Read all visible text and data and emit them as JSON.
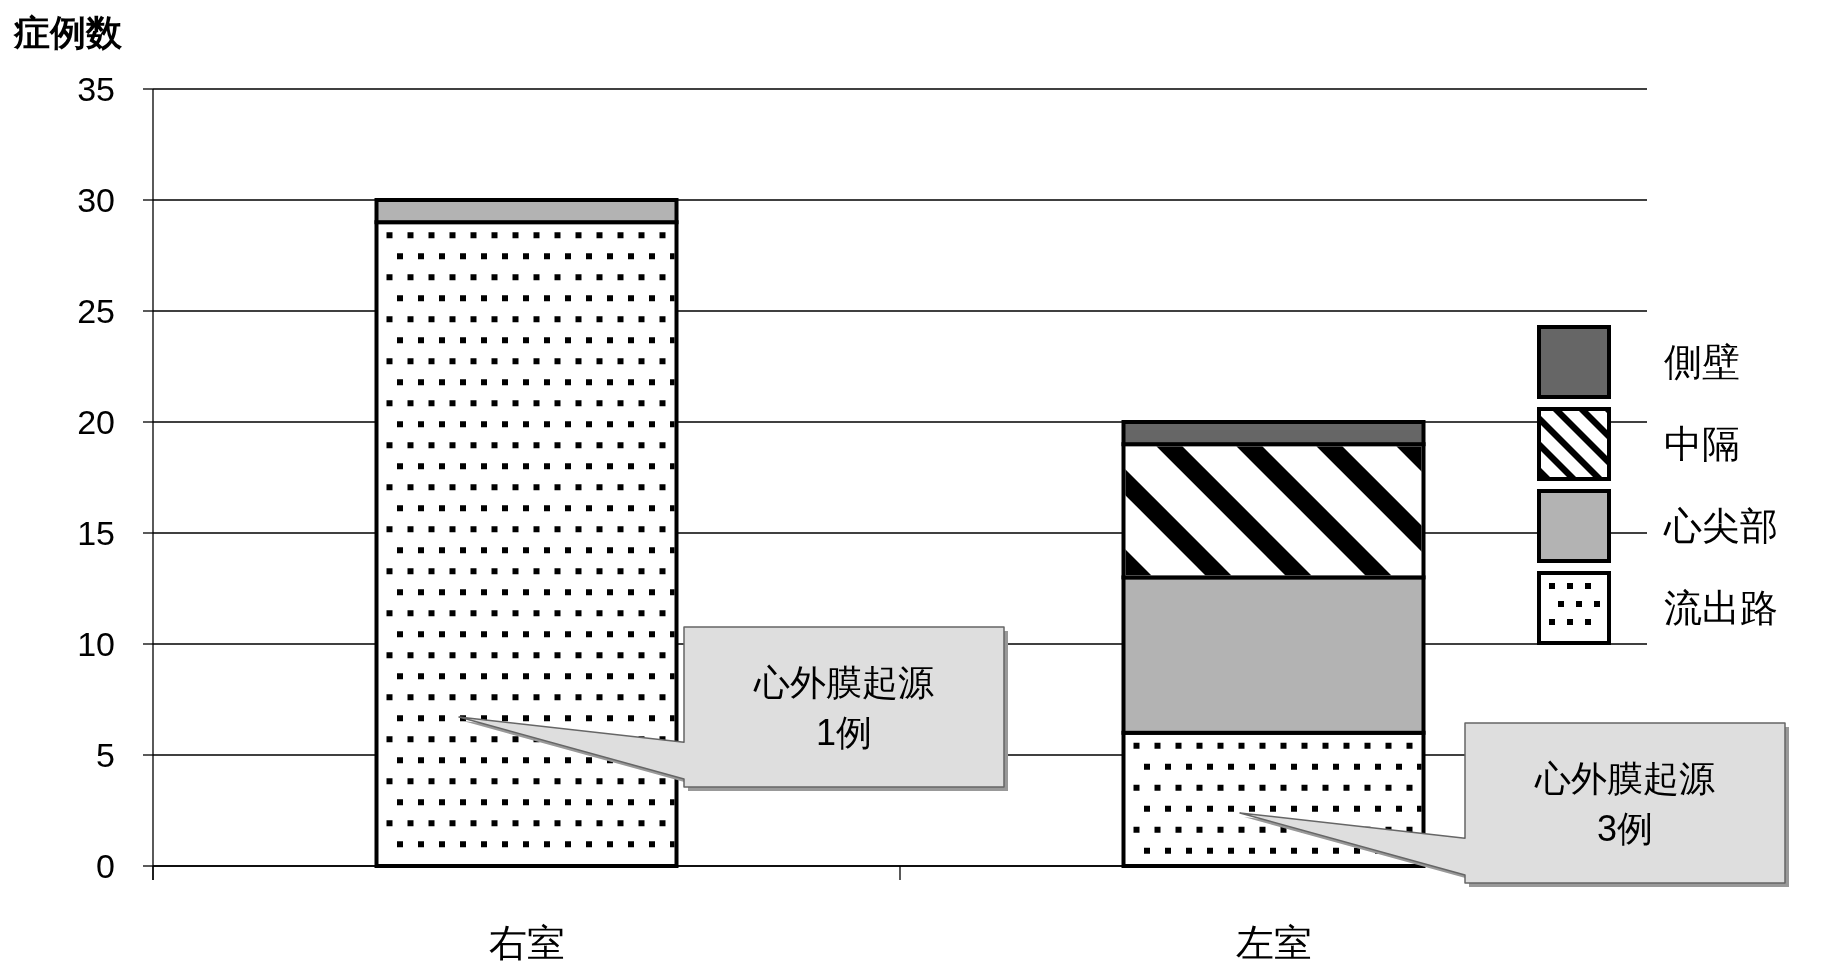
{
  "chart_data": {
    "type": "bar",
    "stacked": true,
    "ylabel": "症例数",
    "categories": [
      "右室",
      "左室"
    ],
    "series": [
      {
        "name": "流出路",
        "color": "#ffffff",
        "values": [
          29,
          6
        ]
      },
      {
        "name": "心尖部",
        "color": "#b3b3b3",
        "values": [
          1,
          7
        ]
      },
      {
        "name": "中隔",
        "color": "#ffffff",
        "values": [
          0,
          6
        ]
      },
      {
        "name": "側壁",
        "color": "#666666",
        "values": [
          0,
          1
        ]
      }
    ],
    "ylim": [
      0,
      35
    ],
    "yticks": [
      0,
      5,
      10,
      15,
      20,
      25,
      30,
      35
    ],
    "grid": "y",
    "legend": "right",
    "annotations": [
      "心外膜起源\n1例",
      "心外膜起源\n3例"
    ]
  }
}
